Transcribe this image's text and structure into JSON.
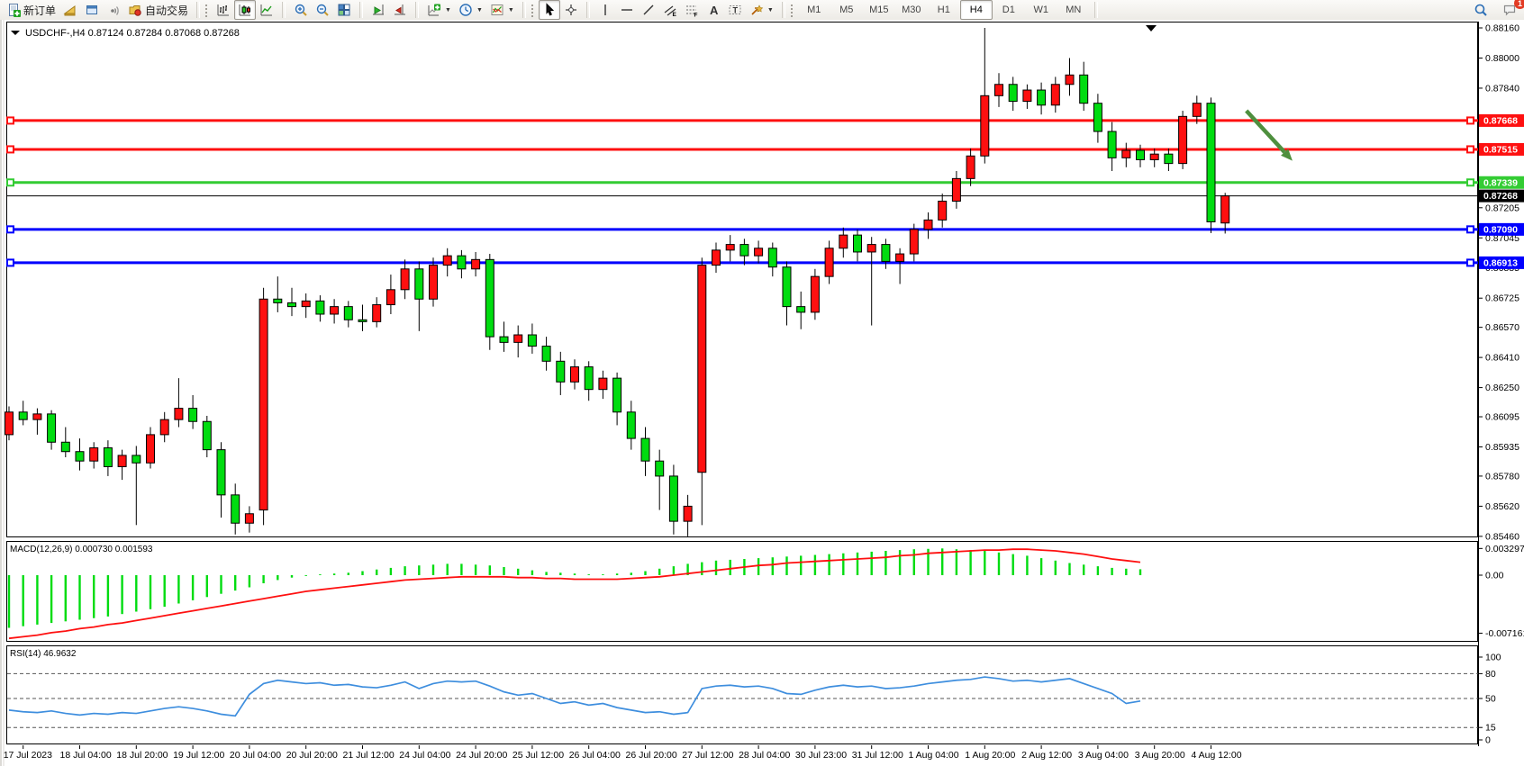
{
  "toolbar": {
    "new_order_label": "新订单",
    "autotrade_label": "自动交易",
    "notifications_badge": "1",
    "groups": [
      {
        "name": "trade",
        "buttons": [
          {
            "name": "new-order-button",
            "icon": "doc-plus-icon",
            "label": "新订单"
          },
          {
            "name": "market-watch-button",
            "icon": "wedge-icon",
            "label": ""
          },
          {
            "name": "data-window-button",
            "icon": "window-icon",
            "label": ""
          },
          {
            "name": "signals-button",
            "icon": "signal-icon",
            "label": ""
          },
          {
            "name": "autotrading-button",
            "icon": "folder-dot-icon",
            "label": "自动交易"
          }
        ]
      },
      {
        "name": "chart-types",
        "buttons": [
          {
            "name": "bar-chart-button",
            "icon": "bars-icon",
            "label": ""
          },
          {
            "name": "candlestick-chart-button",
            "icon": "candle-icon",
            "label": "",
            "pressed": true
          },
          {
            "name": "line-chart-button",
            "icon": "line-icon",
            "label": ""
          }
        ]
      },
      {
        "name": "zoom",
        "buttons": [
          {
            "name": "zoom-in-button",
            "icon": "zoom-in-icon",
            "label": ""
          },
          {
            "name": "zoom-out-button",
            "icon": "zoom-out-icon",
            "label": ""
          },
          {
            "name": "tile-windows-button",
            "icon": "tile-icon",
            "label": ""
          }
        ]
      },
      {
        "name": "scroll",
        "buttons": [
          {
            "name": "auto-scroll-button",
            "icon": "autoscroll-icon",
            "label": ""
          },
          {
            "name": "chart-shift-button",
            "icon": "chartshift-icon",
            "label": ""
          }
        ]
      },
      {
        "name": "objects-menus",
        "buttons": [
          {
            "name": "indicators-menu-button",
            "icon": "indicator-plus-icon",
            "label": "",
            "caret": true
          },
          {
            "name": "periods-menu-button",
            "icon": "clock-icon",
            "label": "",
            "caret": true
          },
          {
            "name": "templates-menu-button",
            "icon": "template-icon",
            "label": "",
            "caret": true
          }
        ]
      },
      {
        "name": "cursor-tools",
        "buttons": [
          {
            "name": "cursor-button",
            "icon": "cursor-icon",
            "label": "",
            "pressed": true
          },
          {
            "name": "crosshair-button",
            "icon": "crosshair-icon",
            "label": ""
          }
        ]
      },
      {
        "name": "draw-tools",
        "buttons": [
          {
            "name": "vline-button",
            "icon": "vline-icon",
            "label": ""
          },
          {
            "name": "hline-button",
            "icon": "hline-icon",
            "label": ""
          },
          {
            "name": "trendline-button",
            "icon": "tline-icon",
            "label": ""
          },
          {
            "name": "channel-button",
            "icon": "channel-icon",
            "label": ""
          },
          {
            "name": "fibonacci-button",
            "icon": "fibo-icon",
            "label": ""
          },
          {
            "name": "text-button",
            "icon": "text-a-icon",
            "label": ""
          },
          {
            "name": "label-button",
            "icon": "label-t-icon",
            "label": ""
          },
          {
            "name": "arrows-button",
            "icon": "arrows-icon",
            "label": "",
            "caret": true
          }
        ]
      }
    ],
    "timeframes": [
      {
        "label": "M1"
      },
      {
        "label": "M5"
      },
      {
        "label": "M15"
      },
      {
        "label": "M30"
      },
      {
        "label": "H1"
      },
      {
        "label": "H4",
        "active": true
      },
      {
        "label": "D1"
      },
      {
        "label": "W1"
      },
      {
        "label": "MN"
      }
    ],
    "right_icons": [
      {
        "name": "search-icon"
      },
      {
        "name": "chat-icon",
        "badge": "1"
      }
    ]
  },
  "chart": {
    "title": {
      "symbol": "USDCHF-,H4",
      "open": "0.87124",
      "high": "0.87284",
      "low": "0.87068",
      "close": "0.87268"
    },
    "macd_label": "MACD(12,26,9)",
    "macd_values": "0.000730 0.001593",
    "rsi_label": "RSI(14)",
    "rsi_value": "46.9632",
    "price_ticks": [
      "0.88160",
      "0.88000",
      "0.87840",
      "0.87205",
      "0.87045",
      "0.86885",
      "0.86725",
      "0.86570",
      "0.86410",
      "0.86250",
      "0.86095",
      "0.85935",
      "0.85780",
      "0.85620",
      "0.85460"
    ],
    "macd_ticks": [
      {
        "v": 0.003297,
        "t": "0.003297"
      },
      {
        "v": 0,
        "t": "0.00"
      },
      {
        "v": -0.007161,
        "t": "-0.007161"
      }
    ],
    "rsi_ticks": [
      {
        "v": 100,
        "t": "100"
      },
      {
        "v": 80,
        "t": "80"
      },
      {
        "v": 50,
        "t": "50"
      },
      {
        "v": 15,
        "t": "15"
      },
      {
        "v": 0,
        "t": "0"
      }
    ]
  },
  "chart_data": [
    {
      "type": "candlestick",
      "title": "USDCHF-,H4",
      "timeframe": "H4",
      "ohlc_current": {
        "open": 0.87124,
        "high": 0.87284,
        "low": 0.87068,
        "close": 0.87268
      },
      "ylim": [
        0.8546,
        0.8816
      ],
      "grid": false,
      "colors": {
        "bull": "#fe1010",
        "bear": "#00dc10",
        "wick": "#000000"
      },
      "x_labels": [
        "17 Jul 2023",
        "18 Jul 04:00",
        "18 Jul 20:00",
        "19 Jul 12:00",
        "20 Jul 04:00",
        "20 Jul 20:00",
        "21 Jul 12:00",
        "24 Jul 04:00",
        "24 Jul 20:00",
        "25 Jul 12:00",
        "26 Jul 04:00",
        "26 Jul 20:00",
        "27 Jul 12:00",
        "28 Jul 04:00",
        "30 Jul 23:00",
        "31 Jul 12:00",
        "1 Aug 04:00",
        "1 Aug 20:00",
        "2 Aug 12:00",
        "3 Aug 04:00",
        "3 Aug 20:00",
        "4 Aug 12:00"
      ],
      "horizontal_lines": [
        {
          "price": 0.87668,
          "color": "#fe1010",
          "width": 3,
          "label": "0.87668"
        },
        {
          "price": 0.87515,
          "color": "#fe1010",
          "width": 3,
          "label": "0.87515"
        },
        {
          "price": 0.87339,
          "color": "#33cc33",
          "width": 3,
          "label": "0.87339"
        },
        {
          "price": 0.8709,
          "color": "#0000fe",
          "width": 3,
          "label": "0.87090"
        },
        {
          "price": 0.86913,
          "color": "#0000fe",
          "width": 3,
          "label": "0.86913"
        }
      ],
      "current_price": {
        "value": 0.87268,
        "label": "0.87268",
        "color": "#000000"
      },
      "annotations": [
        {
          "type": "arrow",
          "from_bar": 87.5,
          "from_price": 0.8772,
          "to_bar": 90.2,
          "to_price": 0.875,
          "color": "#4e8f3e"
        }
      ],
      "ohlc": [
        [
          0.86,
          0.8615,
          0.8597,
          0.8612
        ],
        [
          0.8612,
          0.8618,
          0.8605,
          0.8608
        ],
        [
          0.8608,
          0.8614,
          0.86,
          0.8611
        ],
        [
          0.8611,
          0.8613,
          0.8592,
          0.8596
        ],
        [
          0.8596,
          0.8604,
          0.8588,
          0.8591
        ],
        [
          0.8591,
          0.8598,
          0.8581,
          0.8586
        ],
        [
          0.8586,
          0.8596,
          0.8582,
          0.8593
        ],
        [
          0.8593,
          0.8597,
          0.8578,
          0.8583
        ],
        [
          0.8583,
          0.8592,
          0.8576,
          0.8589
        ],
        [
          0.8589,
          0.8594,
          0.8552,
          0.8585
        ],
        [
          0.8585,
          0.8604,
          0.8582,
          0.86
        ],
        [
          0.86,
          0.8612,
          0.8596,
          0.8608
        ],
        [
          0.8608,
          0.863,
          0.8604,
          0.8614
        ],
        [
          0.8614,
          0.8621,
          0.8603,
          0.8607
        ],
        [
          0.8607,
          0.861,
          0.8588,
          0.8592
        ],
        [
          0.8592,
          0.8596,
          0.8556,
          0.8568
        ],
        [
          0.8568,
          0.8574,
          0.8547,
          0.8553
        ],
        [
          0.8553,
          0.8562,
          0.8548,
          0.8558
        ],
        [
          0.856,
          0.8678,
          0.8552,
          0.8672
        ],
        [
          0.8672,
          0.8684,
          0.8665,
          0.867
        ],
        [
          0.867,
          0.8678,
          0.8663,
          0.8668
        ],
        [
          0.8668,
          0.8675,
          0.8662,
          0.8671
        ],
        [
          0.8671,
          0.8674,
          0.866,
          0.8664
        ],
        [
          0.8664,
          0.8672,
          0.8659,
          0.8668
        ],
        [
          0.8668,
          0.8671,
          0.8657,
          0.8661
        ],
        [
          0.8661,
          0.8669,
          0.8655,
          0.866
        ],
        [
          0.866,
          0.8673,
          0.8657,
          0.8669
        ],
        [
          0.8669,
          0.8685,
          0.8664,
          0.8677
        ],
        [
          0.8677,
          0.8693,
          0.8672,
          0.8688
        ],
        [
          0.8688,
          0.8692,
          0.8655,
          0.8672
        ],
        [
          0.8672,
          0.8694,
          0.8668,
          0.869
        ],
        [
          0.869,
          0.8699,
          0.8684,
          0.8695
        ],
        [
          0.8695,
          0.8698,
          0.8683,
          0.8688
        ],
        [
          0.8688,
          0.8697,
          0.8684,
          0.8693
        ],
        [
          0.8693,
          0.8696,
          0.8645,
          0.8652
        ],
        [
          0.8652,
          0.866,
          0.8644,
          0.8649
        ],
        [
          0.8649,
          0.8658,
          0.8641,
          0.8653
        ],
        [
          0.8653,
          0.8659,
          0.8643,
          0.8647
        ],
        [
          0.8647,
          0.8652,
          0.8634,
          0.8639
        ],
        [
          0.8639,
          0.8644,
          0.8621,
          0.8628
        ],
        [
          0.8628,
          0.864,
          0.8624,
          0.8636
        ],
        [
          0.8636,
          0.8639,
          0.8618,
          0.8624
        ],
        [
          0.8624,
          0.8634,
          0.8619,
          0.863
        ],
        [
          0.863,
          0.8633,
          0.8605,
          0.8612
        ],
        [
          0.8612,
          0.8618,
          0.8592,
          0.8598
        ],
        [
          0.8598,
          0.8604,
          0.8578,
          0.8586
        ],
        [
          0.8586,
          0.8592,
          0.856,
          0.8578
        ],
        [
          0.8578,
          0.8584,
          0.8547,
          0.8554
        ],
        [
          0.8554,
          0.8568,
          0.8546,
          0.8562
        ],
        [
          0.858,
          0.8694,
          0.8552,
          0.869
        ],
        [
          0.869,
          0.8702,
          0.8686,
          0.8698
        ],
        [
          0.8698,
          0.8706,
          0.8692,
          0.8701
        ],
        [
          0.8701,
          0.8704,
          0.869,
          0.8695
        ],
        [
          0.8695,
          0.8703,
          0.8691,
          0.8699
        ],
        [
          0.8699,
          0.8702,
          0.8684,
          0.8689
        ],
        [
          0.8689,
          0.8692,
          0.8658,
          0.8668
        ],
        [
          0.8668,
          0.8676,
          0.8656,
          0.8665
        ],
        [
          0.8665,
          0.8688,
          0.8661,
          0.8684
        ],
        [
          0.8684,
          0.8703,
          0.868,
          0.8699
        ],
        [
          0.8699,
          0.871,
          0.8694,
          0.8706
        ],
        [
          0.8706,
          0.8709,
          0.8692,
          0.8697
        ],
        [
          0.8697,
          0.8705,
          0.8658,
          0.8701
        ],
        [
          0.8701,
          0.8704,
          0.8688,
          0.8692
        ],
        [
          0.8692,
          0.8699,
          0.868,
          0.8696
        ],
        [
          0.8696,
          0.8712,
          0.8692,
          0.8709
        ],
        [
          0.8709,
          0.8718,
          0.8704,
          0.8714
        ],
        [
          0.8714,
          0.8728,
          0.871,
          0.8724
        ],
        [
          0.8724,
          0.874,
          0.872,
          0.8736
        ],
        [
          0.8736,
          0.8752,
          0.8732,
          0.8748
        ],
        [
          0.8748,
          0.8816,
          0.8744,
          0.878
        ],
        [
          0.878,
          0.8792,
          0.8774,
          0.8786
        ],
        [
          0.8786,
          0.879,
          0.8772,
          0.8777
        ],
        [
          0.8777,
          0.8786,
          0.8773,
          0.8783
        ],
        [
          0.8783,
          0.8787,
          0.877,
          0.8775
        ],
        [
          0.8775,
          0.879,
          0.8771,
          0.8786
        ],
        [
          0.8786,
          0.88,
          0.878,
          0.8791
        ],
        [
          0.8791,
          0.8798,
          0.8772,
          0.8776
        ],
        [
          0.8776,
          0.8781,
          0.8755,
          0.8761
        ],
        [
          0.8761,
          0.8766,
          0.874,
          0.8747
        ],
        [
          0.8747,
          0.8755,
          0.8742,
          0.8751
        ],
        [
          0.8751,
          0.8754,
          0.8742,
          0.8746
        ],
        [
          0.8746,
          0.8752,
          0.8742,
          0.8749
        ],
        [
          0.8749,
          0.8752,
          0.874,
          0.8744
        ],
        [
          0.8744,
          0.8772,
          0.8741,
          0.8769
        ],
        [
          0.8769,
          0.878,
          0.8765,
          0.8776
        ],
        [
          0.8776,
          0.8779,
          0.8707,
          0.8713
        ],
        [
          0.87124,
          0.87284,
          0.87068,
          0.87268
        ]
      ]
    },
    {
      "type": "bar",
      "title": "MACD(12,26,9)",
      "current_values": [
        0.00073,
        0.001593
      ],
      "ylim": [
        -0.007161,
        0.003297
      ],
      "colors": {
        "histogram": "#00dc10",
        "signal": "#fe1010"
      },
      "histogram": [
        -0.0065,
        -0.0063,
        -0.0061,
        -0.0059,
        -0.0057,
        -0.0055,
        -0.0053,
        -0.0051,
        -0.0048,
        -0.0045,
        -0.0042,
        -0.0039,
        -0.0035,
        -0.0031,
        -0.0027,
        -0.0023,
        -0.0019,
        -0.0015,
        -0.001,
        -0.0006,
        -0.0003,
        -0.0001,
        0.0001,
        0.0002,
        0.0003,
        0.0005,
        0.0007,
        0.0009,
        0.0011,
        0.0012,
        0.0013,
        0.0014,
        0.0014,
        0.0013,
        0.0012,
        0.001,
        0.0008,
        0.0006,
        0.0004,
        0.0003,
        0.0002,
        0.0001,
        0.0001,
        0.0002,
        0.0003,
        0.0005,
        0.0008,
        0.0011,
        0.0014,
        0.0016,
        0.0018,
        0.0019,
        0.002,
        0.0021,
        0.0022,
        0.0023,
        0.0024,
        0.0025,
        0.0026,
        0.0027,
        0.0028,
        0.0029,
        0.003,
        0.0031,
        0.0032,
        0.00325,
        0.0033,
        0.0032,
        0.0031,
        0.003,
        0.0028,
        0.0026,
        0.0024,
        0.0021,
        0.0018,
        0.0015,
        0.0013,
        0.0011,
        0.0009,
        0.0008,
        0.00073
      ],
      "signal": [
        -0.0078,
        -0.0076,
        -0.0074,
        -0.0071,
        -0.0069,
        -0.0066,
        -0.0064,
        -0.0061,
        -0.0059,
        -0.0056,
        -0.0053,
        -0.005,
        -0.0047,
        -0.0044,
        -0.0041,
        -0.0038,
        -0.0035,
        -0.0032,
        -0.0029,
        -0.0026,
        -0.0023,
        -0.002,
        -0.0018,
        -0.0016,
        -0.0014,
        -0.0012,
        -0.001,
        -0.0008,
        -0.0006,
        -0.0005,
        -0.0004,
        -0.0003,
        -0.0002,
        -0.0002,
        -0.0002,
        -0.0002,
        -0.0003,
        -0.0003,
        -0.0004,
        -0.0004,
        -0.0005,
        -0.0005,
        -0.0005,
        -0.0005,
        -0.0004,
        -0.0003,
        -0.0002,
        0.0,
        0.0002,
        0.0004,
        0.0006,
        0.0008,
        0.001,
        0.0012,
        0.0013,
        0.0015,
        0.0016,
        0.0017,
        0.0018,
        0.0019,
        0.002,
        0.0021,
        0.0022,
        0.0024,
        0.0025,
        0.0027,
        0.0028,
        0.0029,
        0.003,
        0.0031,
        0.0031,
        0.0032,
        0.0032,
        0.0031,
        0.003,
        0.0028,
        0.0026,
        0.0023,
        0.002,
        0.0018,
        0.0016
      ]
    },
    {
      "type": "line",
      "title": "RSI(14)",
      "current_value": 46.9632,
      "range": [
        0,
        100
      ],
      "levels": [
        80,
        50,
        15
      ],
      "color": "#3e8ede",
      "values": [
        36,
        34,
        33,
        35,
        32,
        30,
        32,
        31,
        33,
        32,
        35,
        38,
        40,
        38,
        35,
        31,
        29,
        55,
        68,
        72,
        70,
        68,
        69,
        66,
        67,
        64,
        63,
        66,
        70,
        62,
        68,
        71,
        70,
        71,
        65,
        58,
        54,
        56,
        50,
        44,
        46,
        42,
        44,
        39,
        36,
        33,
        34,
        31,
        33,
        62,
        65,
        66,
        64,
        65,
        62,
        56,
        55,
        60,
        64,
        66,
        64,
        65,
        62,
        63,
        65,
        68,
        70,
        72,
        73,
        76,
        74,
        71,
        72,
        70,
        72,
        74,
        68,
        62,
        56,
        44,
        46.9632
      ]
    }
  ]
}
